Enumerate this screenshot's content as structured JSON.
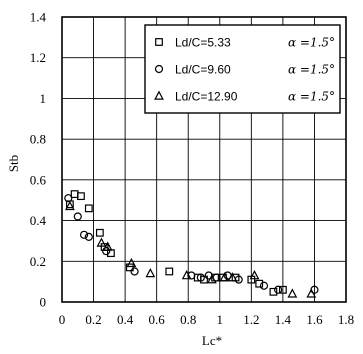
{
  "chart_data": {
    "type": "scatter",
    "xlabel": "Lc*",
    "ylabel": "Stb",
    "xlim": [
      0,
      1.8
    ],
    "ylim": [
      0,
      1.4
    ],
    "xticks": [
      "0",
      "0.2",
      "0.4",
      "0.6",
      "0.8",
      "1",
      "1.2",
      "1.4",
      "1.6",
      "1.8"
    ],
    "yticks": [
      "0",
      "0.2",
      "0.4",
      "0.6",
      "0.8",
      "1",
      "1.2",
      "1.4"
    ],
    "grid": true,
    "legend_position": "top-right",
    "series": [
      {
        "name": "Ld/C=5.33",
        "alpha_label": "α =1.5°",
        "marker": "square",
        "points": [
          [
            0.05,
            0.48
          ],
          [
            0.08,
            0.53
          ],
          [
            0.12,
            0.52
          ],
          [
            0.17,
            0.46
          ],
          [
            0.24,
            0.34
          ],
          [
            0.27,
            0.27
          ],
          [
            0.31,
            0.24
          ],
          [
            0.43,
            0.17
          ],
          [
            0.68,
            0.15
          ],
          [
            0.86,
            0.12
          ],
          [
            0.9,
            0.11
          ],
          [
            0.97,
            0.12
          ],
          [
            1.02,
            0.12
          ],
          [
            1.1,
            0.12
          ],
          [
            1.2,
            0.11
          ],
          [
            1.25,
            0.09
          ],
          [
            1.34,
            0.05
          ],
          [
            1.4,
            0.06
          ]
        ]
      },
      {
        "name": "Ld/C=9.60",
        "alpha_label": "α =1.5°",
        "marker": "circle",
        "points": [
          [
            0.04,
            0.51
          ],
          [
            0.1,
            0.42
          ],
          [
            0.14,
            0.33
          ],
          [
            0.17,
            0.32
          ],
          [
            0.28,
            0.25
          ],
          [
            0.46,
            0.15
          ],
          [
            0.82,
            0.13
          ],
          [
            0.88,
            0.12
          ],
          [
            0.93,
            0.13
          ],
          [
            0.98,
            0.12
          ],
          [
            1.05,
            0.13
          ],
          [
            1.12,
            0.11
          ],
          [
            1.28,
            0.08
          ],
          [
            1.37,
            0.06
          ],
          [
            1.6,
            0.06
          ]
        ]
      },
      {
        "name": "Ld/C=12.90",
        "alpha_label": "α =1.5°",
        "marker": "triangle",
        "points": [
          [
            0.05,
            0.47
          ],
          [
            0.25,
            0.29
          ],
          [
            0.29,
            0.27
          ],
          [
            0.44,
            0.19
          ],
          [
            0.56,
            0.14
          ],
          [
            0.79,
            0.13
          ],
          [
            0.95,
            0.11
          ],
          [
            1.03,
            0.12
          ],
          [
            1.08,
            0.12
          ],
          [
            1.22,
            0.13
          ],
          [
            1.46,
            0.04
          ],
          [
            1.58,
            0.04
          ]
        ]
      }
    ]
  }
}
